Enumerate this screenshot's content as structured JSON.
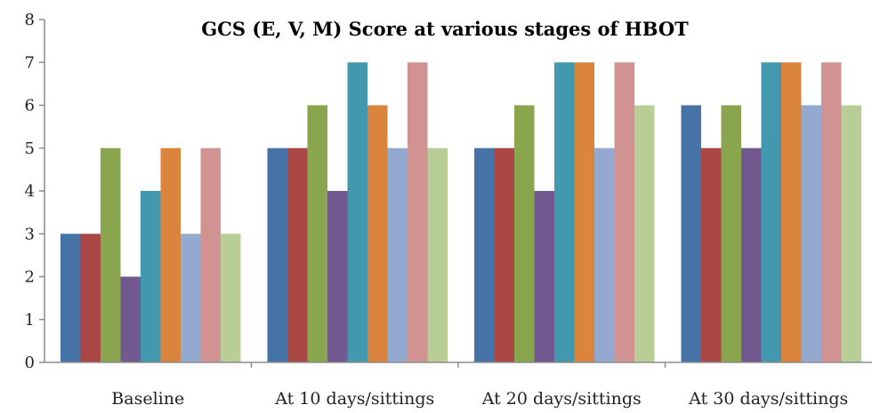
{
  "chart_data": {
    "type": "bar",
    "title": "GCS (E, V, M) Score at various stages of HBOT",
    "xlabel": "",
    "ylabel": "",
    "ylim": [
      0,
      8
    ],
    "yticks": [
      0,
      1,
      2,
      3,
      4,
      5,
      6,
      7,
      8
    ],
    "grid": false,
    "legend": "none",
    "categories": [
      "Baseline",
      "At 10 days/sittings",
      "At 20 days/sittings",
      "At 30 days/sittings"
    ],
    "series": [
      {
        "color": "#4572A7",
        "values": [
          3,
          5,
          5,
          6
        ]
      },
      {
        "color": "#AA4643",
        "values": [
          3,
          5,
          5,
          5
        ]
      },
      {
        "color": "#89A54E",
        "values": [
          5,
          6,
          6,
          6
        ]
      },
      {
        "color": "#71588F",
        "values": [
          2,
          4,
          4,
          5
        ]
      },
      {
        "color": "#4198AF",
        "values": [
          4,
          7,
          7,
          7
        ]
      },
      {
        "color": "#DB843D",
        "values": [
          5,
          6,
          7,
          7
        ]
      },
      {
        "color": "#93A9CF",
        "values": [
          3,
          5,
          5,
          6
        ]
      },
      {
        "color": "#D19392",
        "values": [
          5,
          7,
          7,
          7
        ]
      },
      {
        "color": "#B9CD96",
        "values": [
          3,
          5,
          6,
          6
        ]
      }
    ]
  }
}
